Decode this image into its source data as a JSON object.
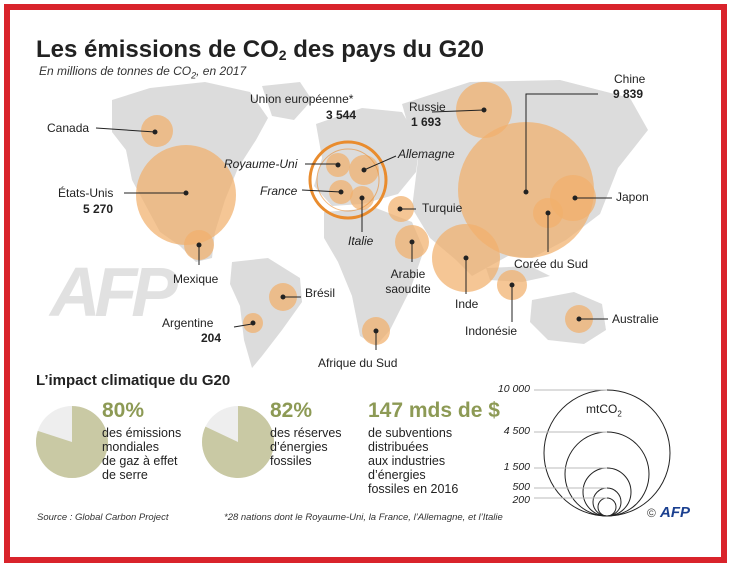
{
  "title": {
    "pre": "Les émissions de CO",
    "sub": "2",
    "post": " des pays du G20"
  },
  "subtitle": {
    "pre": "En millions de tonnes de CO",
    "sub": "2",
    "post": ", en 2017"
  },
  "colors": {
    "frame": "#d9232b",
    "bubble": "#f1b06c",
    "bubble_dark": "#e98c2e",
    "land": "#dcdcdc",
    "pie_fill": "#c9c9a4",
    "pie_bg": "#eeeeee",
    "accent_green": "#8d9a55"
  },
  "map_labels": {
    "canada": "Canada",
    "usa": "États-Unis",
    "usa_val": "5 270",
    "mexique": "Mexique",
    "bresil": "Brésil",
    "argentine": "Argentine",
    "argentine_val": "204",
    "ue": "Union européenne*",
    "ue_val": "3 544",
    "royaume_uni": "Royaume-Uni",
    "allemagne": "Allemagne",
    "france": "France",
    "italie": "Italie",
    "russie": "Russie",
    "russie_val": "1 693",
    "chine": "Chine",
    "chine_val": "9 839",
    "japon": "Japon",
    "turquie": "Turquie",
    "arabie_1": "Arabie",
    "arabie_2": "saoudite",
    "inde": "Inde",
    "coree": "Corée du Sud",
    "indonesie": "Indonésie",
    "australie": "Australie",
    "afrique_sud": "Afrique du Sud"
  },
  "map_data": [
    {
      "country": "Chine",
      "value": 9839
    },
    {
      "country": "États-Unis",
      "value": 5270
    },
    {
      "country": "Union européenne*",
      "value": 3544
    },
    {
      "country": "Russie",
      "value": 1693
    },
    {
      "country": "Argentine",
      "value": 204
    }
  ],
  "impact": {
    "title": "L’impact climatique du G20",
    "stat1": {
      "value": "80%",
      "line1": "des émissions",
      "line2": "mondiales",
      "line3": "de gaz à effet",
      "line4": "de serre",
      "fraction": 0.8
    },
    "stat2": {
      "value": "82%",
      "line1": "des réserves",
      "line2": "d’énergies",
      "line3": "fossiles",
      "fraction": 0.82
    },
    "stat3": {
      "value": "147 mds de $",
      "line1": "de subventions",
      "line2": "distribuées",
      "line3": "aux industries",
      "line4": "d’énergies",
      "line5": "fossiles en 2016"
    }
  },
  "scale": {
    "unit_pre": "mtCO",
    "unit_sub": "2",
    "ticks": [
      "10 000",
      "4 500",
      "1 500",
      "500",
      "200"
    ]
  },
  "footer": {
    "source": "Source : Global Carbon Project",
    "note": "*28 nations dont le Royaume-Uni, la France, l’Allemagne, et l’Italie",
    "logo": "AFP",
    "copyright": "©"
  },
  "watermark": "AFP"
}
